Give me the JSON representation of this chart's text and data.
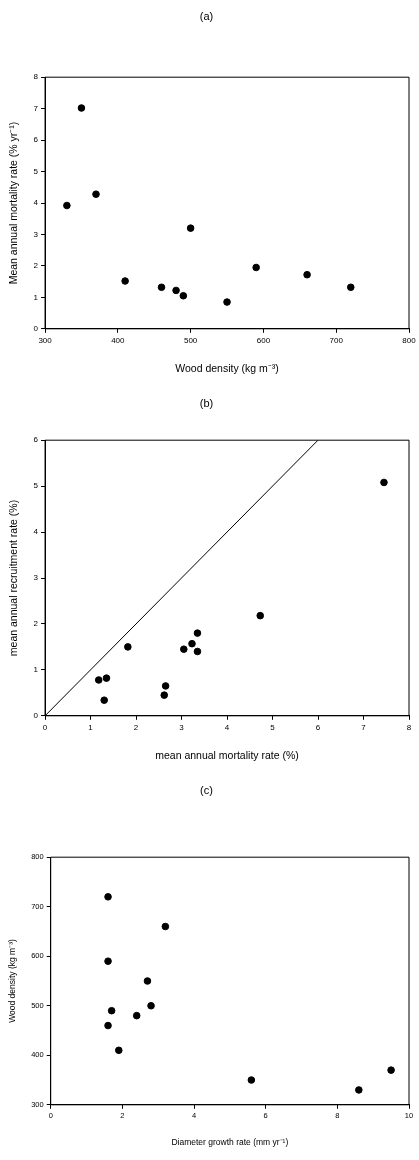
{
  "chart_data": [
    {
      "type": "scatter",
      "title": "(a)",
      "xlabel": "Wood density (kg m⁻³)",
      "ylabel": "Mean annual mortality rate (% yr⁻¹)",
      "xlim": [
        300,
        800
      ],
      "xticks": [
        300,
        400,
        500,
        600,
        700,
        800
      ],
      "ylim": [
        0,
        8
      ],
      "yticks": [
        0,
        1,
        2,
        3,
        4,
        5,
        6,
        7,
        8
      ],
      "marker": "circle",
      "series": [
        {
          "color": "#000000",
          "x": [
            330,
            350,
            370,
            410,
            460,
            480,
            490,
            500,
            550,
            590,
            660,
            720
          ],
          "values": [
            3.92,
            7.02,
            4.28,
            1.52,
            1.32,
            1.22,
            1.05,
            3.2,
            0.85,
            1.95,
            1.72,
            1.32
          ]
        }
      ]
    },
    {
      "type": "scatter",
      "title": "(b)",
      "xlabel": "mean annual mortality rate (%)",
      "ylabel": "mean annual recruitment rate (%)",
      "xlim": [
        0,
        8
      ],
      "xticks": [
        0,
        1,
        2,
        3,
        4,
        5,
        6,
        7,
        8
      ],
      "ylim": [
        0,
        6
      ],
      "yticks": [
        0,
        1,
        2,
        3,
        4,
        5,
        6
      ],
      "marker": "circle",
      "series": [
        {
          "color": "#000000",
          "x": [
            1.18,
            1.35,
            1.3,
            1.82,
            2.62,
            2.65,
            3.05,
            3.23,
            3.35,
            3.35,
            4.73,
            7.45
          ],
          "values": [
            0.78,
            0.82,
            0.34,
            1.5,
            0.45,
            0.65,
            1.45,
            1.57,
            1.8,
            1.4,
            2.18,
            5.08
          ]
        },
        {
          "type": "line",
          "color": "#000000",
          "marker": "none",
          "x": [
            0,
            6
          ],
          "values": [
            0,
            6
          ]
        }
      ]
    },
    {
      "type": "scatter",
      "title": "(c)",
      "xlabel": "Diameter growth rate (mm yr⁻¹)",
      "ylabel": "Wood density (kg m⁻³)",
      "xlim": [
        0,
        10
      ],
      "xticks": [
        0,
        2,
        4,
        6,
        8,
        10
      ],
      "ylim": [
        300,
        800
      ],
      "yticks": [
        300,
        400,
        500,
        600,
        700,
        800
      ],
      "marker": "circle",
      "series": [
        {
          "color": "#000000",
          "x": [
            1.6,
            1.6,
            1.7,
            1.6,
            1.9,
            2.4,
            2.7,
            2.8,
            3.2,
            5.6,
            8.6,
            9.5
          ],
          "values": [
            720,
            590,
            490,
            460,
            410,
            480,
            550,
            500,
            660,
            350,
            330,
            370
          ]
        }
      ]
    }
  ]
}
